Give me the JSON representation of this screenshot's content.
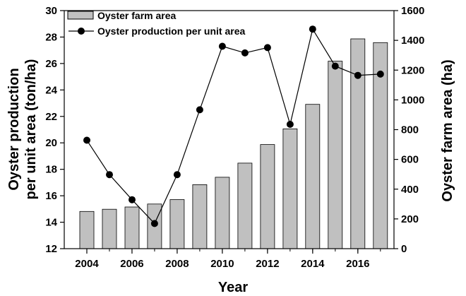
{
  "chart_data": {
    "type": "bar+line",
    "x": [
      2004,
      2005,
      2006,
      2007,
      2008,
      2009,
      2010,
      2011,
      2012,
      2013,
      2014,
      2015,
      2016,
      2017
    ],
    "series": [
      {
        "name": "Oyster farm area",
        "kind": "bar",
        "axis": "right",
        "color": "#c0c0c0",
        "values": [
          250,
          265,
          280,
          300,
          330,
          430,
          480,
          575,
          700,
          805,
          970,
          1260,
          1410,
          1385
        ]
      },
      {
        "name": "Oyster production per unit area",
        "kind": "line",
        "axis": "left",
        "color": "#000000",
        "values": [
          20.2,
          17.6,
          15.7,
          13.9,
          17.6,
          22.5,
          27.3,
          26.8,
          27.2,
          21.4,
          28.6,
          25.8,
          25.1,
          25.2
        ]
      }
    ],
    "xlabel": "Year",
    "ylabel_left": "Oyster production\nper unit area (ton/ha)",
    "ylabel_right": "Oyster farm area (ha)",
    "ylim_left": [
      12,
      30
    ],
    "ylim_right": [
      0,
      1600
    ],
    "xlim": [
      2003,
      2017.6
    ],
    "xticks": [
      2004,
      2006,
      2008,
      2010,
      2012,
      2014,
      2016
    ],
    "yticks_left": [
      12,
      14,
      16,
      18,
      20,
      22,
      24,
      26,
      28,
      30
    ],
    "yticks_right": [
      0,
      200,
      400,
      600,
      800,
      1000,
      1200,
      1400,
      1600
    ],
    "legend_position": "top-left",
    "grid": false
  }
}
